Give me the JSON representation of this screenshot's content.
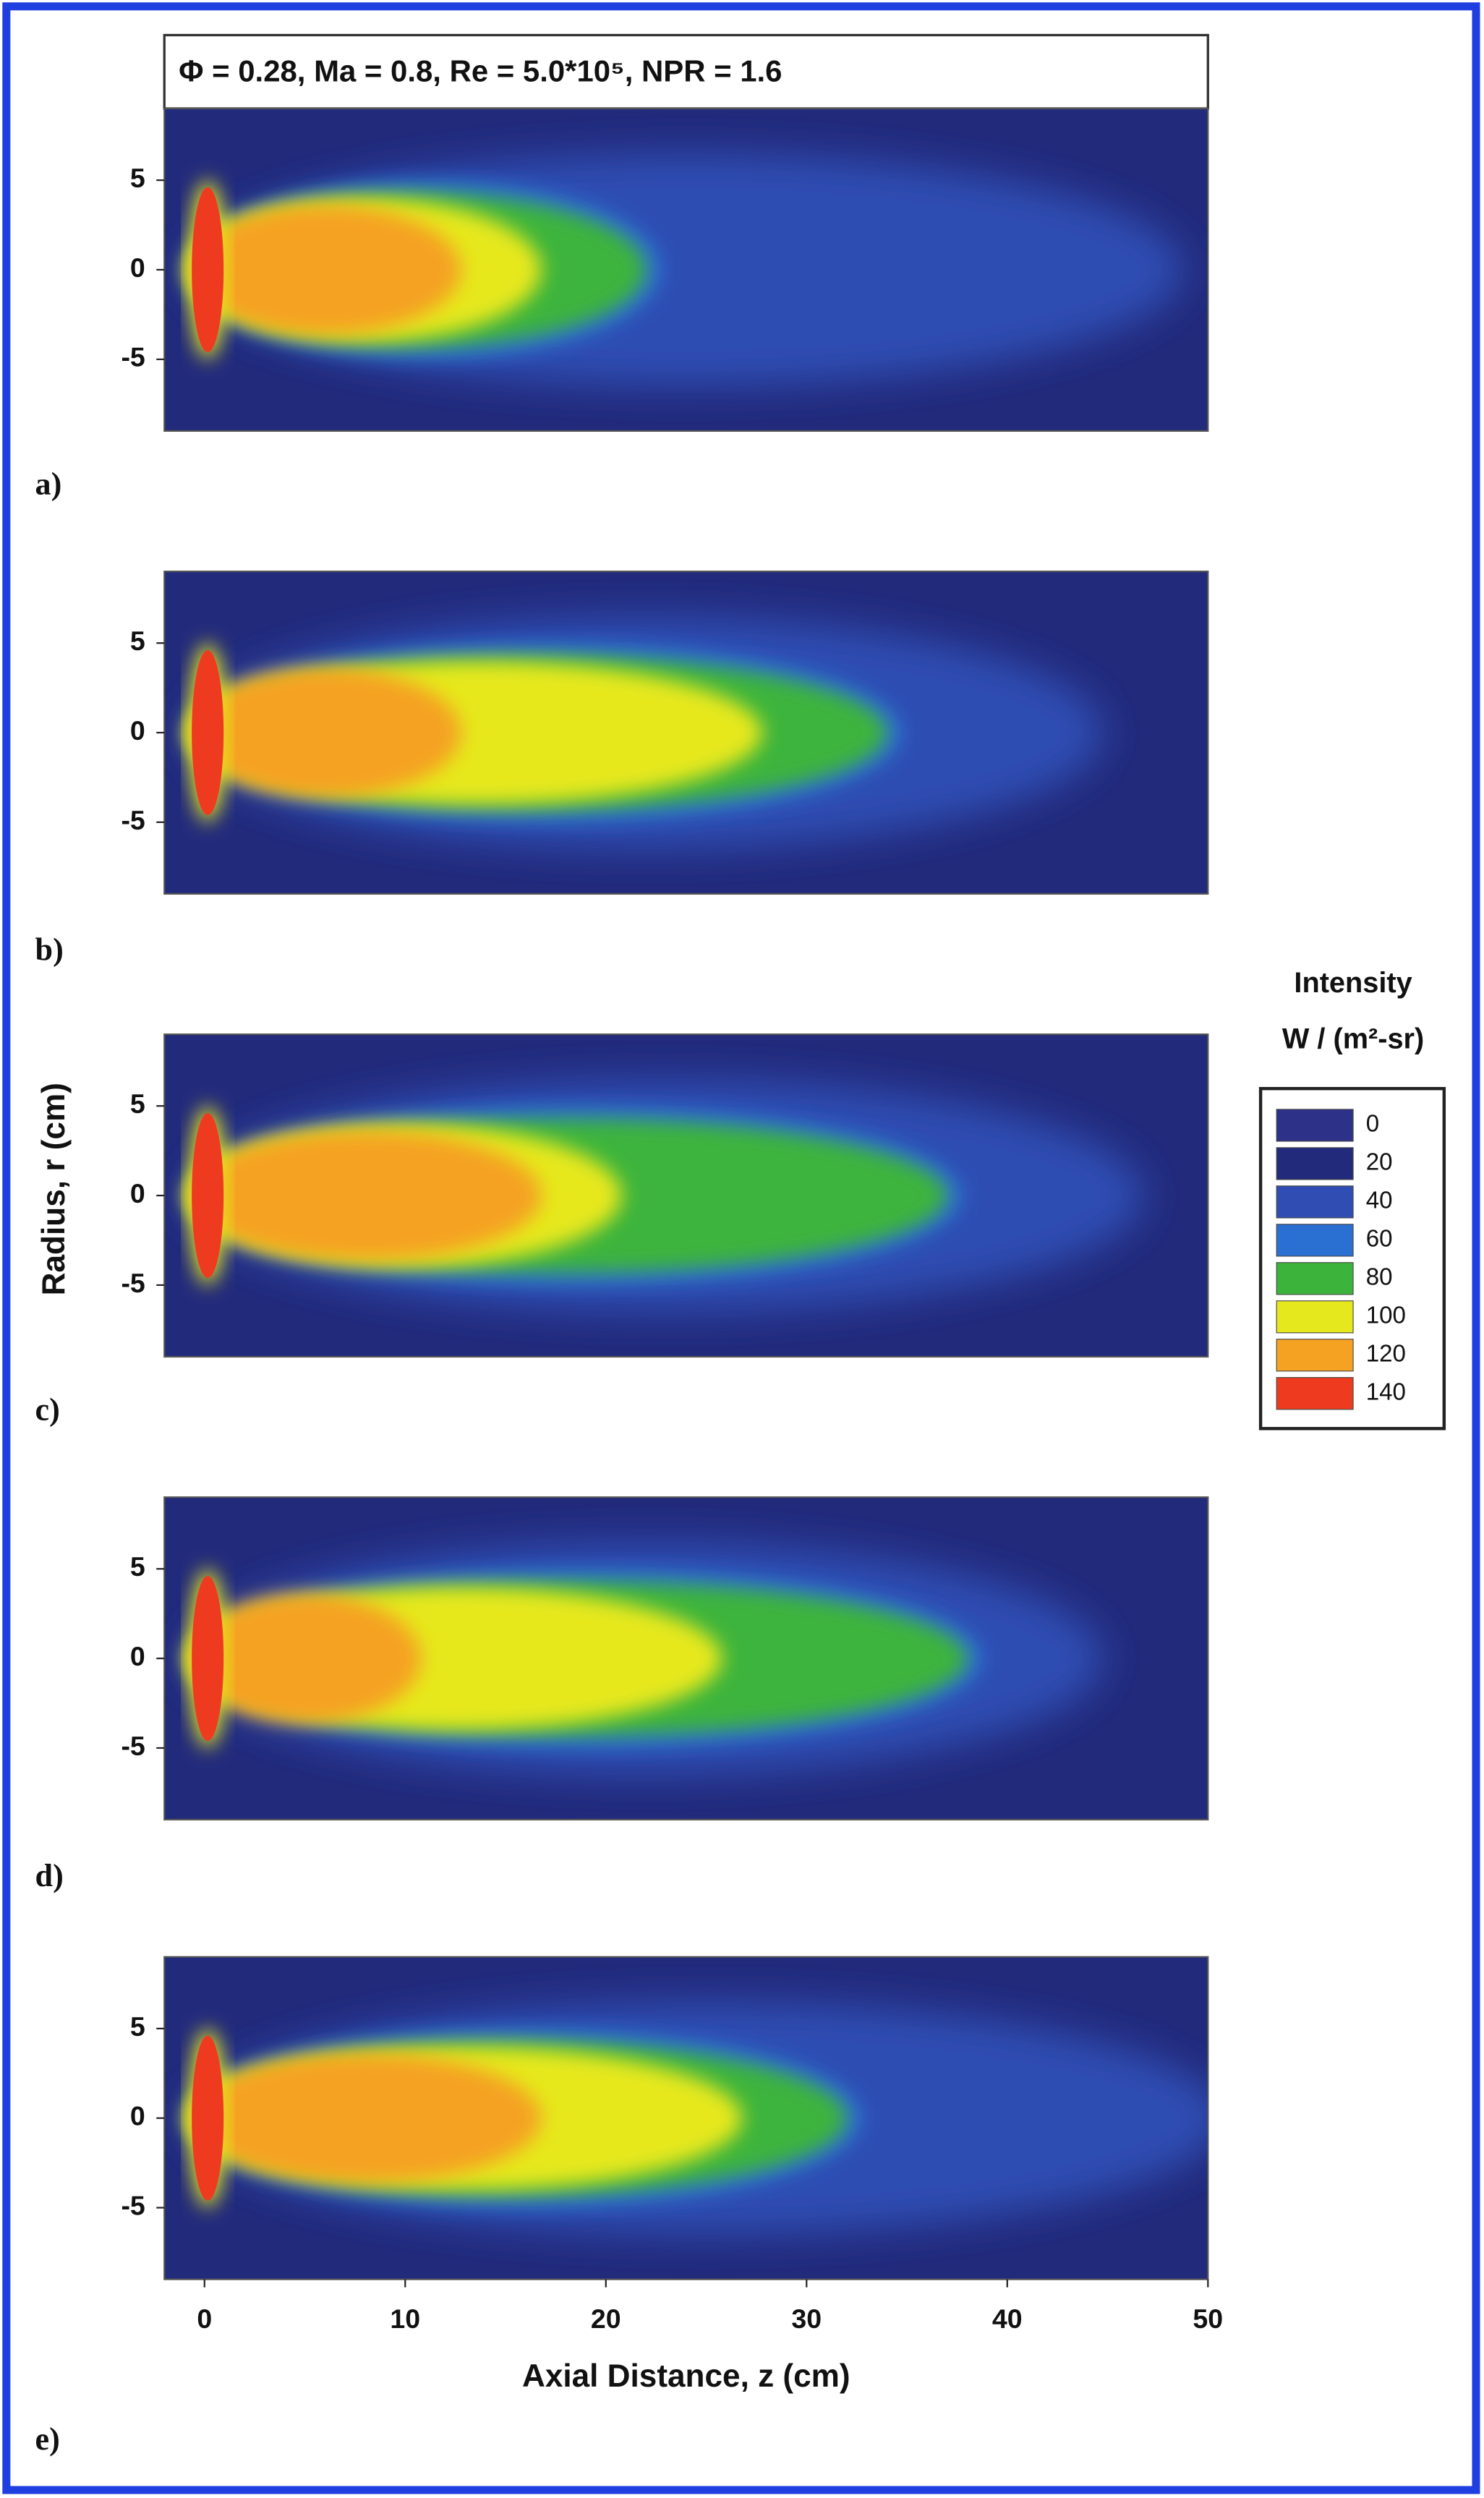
{
  "chart_data": {
    "type": "heatmap",
    "title": "Φ = 0.28, Ma = 0.8, Re = 5.0*10⁵, NPR = 1.6",
    "panels": [
      "a)",
      "b)",
      "c)",
      "d)",
      "e)"
    ],
    "xlabel": "Axial Distance, z (cm)",
    "ylabel": "Radius, r (cm)",
    "xlim": [
      -2,
      50
    ],
    "xticks": [
      0,
      10,
      20,
      30,
      40,
      50
    ],
    "ylim": [
      -9,
      9
    ],
    "yticks": [
      -5,
      0,
      5
    ],
    "colorbar": {
      "title": "Intensity",
      "units": "W / (m²-sr)",
      "levels": [
        0,
        20,
        40,
        60,
        80,
        100,
        120,
        140
      ],
      "colors": [
        "#2d3188",
        "#222a7c",
        "#2f4db3",
        "#2a70d2",
        "#3cb43c",
        "#e6e81e",
        "#f5a223",
        "#ee3b1f"
      ]
    }
  }
}
